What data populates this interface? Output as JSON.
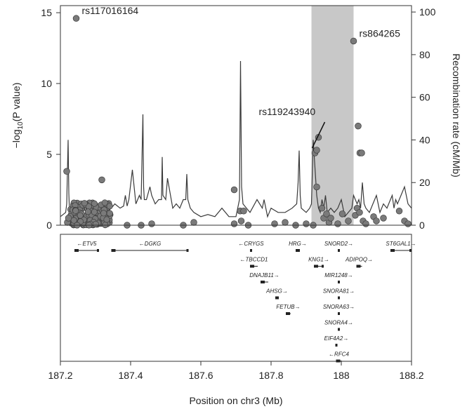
{
  "chart_data": {
    "type": "scatter",
    "title": "",
    "xlabel": "Position on chr3 (Mb)",
    "ylabel_left_prefix": "−log",
    "ylabel_left_sub": "10",
    "ylabel_left_suffix": "(P value)",
    "ylabel_right": "Recombination rate (cM/Mb)",
    "xlim": [
      187.2,
      188.2
    ],
    "ylim_left": [
      0,
      15.5
    ],
    "ylim_right": [
      0,
      103
    ],
    "x_ticks": [
      187.2,
      187.4,
      187.6,
      187.8,
      188.0,
      188.2
    ],
    "x_tick_labels": [
      "187.2",
      "187.4",
      "187.6",
      "187.8",
      "188",
      "188.2"
    ],
    "y_ticks_left": [
      0,
      5,
      10,
      15
    ],
    "y_tick_labels_left": [
      "0",
      "5",
      "10",
      "15"
    ],
    "y_ticks_right": [
      0,
      20,
      40,
      60,
      80,
      100
    ],
    "y_tick_labels_right": [
      "0",
      "20",
      "40",
      "60",
      "80",
      "100"
    ],
    "highlight_region": [
      187.915,
      188.035
    ],
    "annotated_snps": [
      {
        "name": "rs117016164",
        "x": 187.245,
        "y": 14.6
      },
      {
        "name": "rs864265",
        "x": 188.035,
        "y": 13.0
      },
      {
        "name": "rs119243940",
        "x": 187.925,
        "y": 5.1
      }
    ],
    "snps": [
      {
        "x": 187.218,
        "y": 3.8
      },
      {
        "x": 187.245,
        "y": 14.6
      },
      {
        "x": 187.318,
        "y": 3.2
      },
      {
        "x": 187.695,
        "y": 2.5
      },
      {
        "x": 187.712,
        "y": 1.0
      },
      {
        "x": 187.722,
        "y": 1.0
      },
      {
        "x": 187.715,
        "y": 0.3
      },
      {
        "x": 187.735,
        "y": 0.0
      },
      {
        "x": 187.695,
        "y": 0.1
      },
      {
        "x": 187.58,
        "y": 0.2
      },
      {
        "x": 187.55,
        "y": 0.0
      },
      {
        "x": 187.43,
        "y": 0.0
      },
      {
        "x": 187.39,
        "y": 0.0
      },
      {
        "x": 187.46,
        "y": 0.1
      },
      {
        "x": 187.81,
        "y": 0.1
      },
      {
        "x": 187.84,
        "y": 0.2
      },
      {
        "x": 187.87,
        "y": 0.0
      },
      {
        "x": 187.9,
        "y": 0.1
      },
      {
        "x": 187.92,
        "y": 0.0
      },
      {
        "x": 187.925,
        "y": 5.1
      },
      {
        "x": 187.93,
        "y": 5.3
      },
      {
        "x": 187.935,
        "y": 6.2
      },
      {
        "x": 187.93,
        "y": 2.7
      },
      {
        "x": 187.945,
        "y": 1.2
      },
      {
        "x": 187.95,
        "y": 0.5
      },
      {
        "x": 187.958,
        "y": 0.8
      },
      {
        "x": 187.965,
        "y": 0.2
      },
      {
        "x": 187.97,
        "y": 0.5
      },
      {
        "x": 187.99,
        "y": 0.1
      },
      {
        "x": 188.003,
        "y": 0.8
      },
      {
        "x": 188.02,
        "y": 0.3
      },
      {
        "x": 188.035,
        "y": 13.0
      },
      {
        "x": 188.048,
        "y": 7.0
      },
      {
        "x": 188.053,
        "y": 5.1
      },
      {
        "x": 188.058,
        "y": 5.1
      },
      {
        "x": 188.045,
        "y": 1.2
      },
      {
        "x": 188.04,
        "y": 0.7
      },
      {
        "x": 188.052,
        "y": 0.9
      },
      {
        "x": 188.062,
        "y": 0.3
      },
      {
        "x": 188.07,
        "y": 0.1
      },
      {
        "x": 188.092,
        "y": 0.6
      },
      {
        "x": 188.1,
        "y": 0.3
      },
      {
        "x": 188.12,
        "y": 0.5
      },
      {
        "x": 188.165,
        "y": 1.0
      },
      {
        "x": 188.18,
        "y": 0.3
      },
      {
        "x": 188.19,
        "y": 0.1
      },
      {
        "x": 187.22,
        "y": 0.2
      },
      {
        "x": 187.223,
        "y": 0.5
      }
    ],
    "snp_cluster": {
      "x_range": [
        187.228,
        187.345
      ],
      "y_range": [
        0.0,
        1.6
      ],
      "count": 170
    },
    "recombination_rate": {
      "x": [
        187.2,
        187.215,
        187.218,
        187.222,
        187.224,
        187.226,
        187.23,
        187.245,
        187.26,
        187.27,
        187.285,
        187.3,
        187.315,
        187.33,
        187.345,
        187.355,
        187.37,
        187.38,
        187.385,
        187.39,
        187.395,
        187.405,
        187.41,
        187.415,
        187.425,
        187.43,
        187.435,
        187.437,
        187.439,
        187.445,
        187.455,
        187.46,
        187.47,
        187.48,
        187.488,
        187.49,
        187.492,
        187.5,
        187.505,
        187.52,
        187.53,
        187.54,
        187.55,
        187.557,
        187.56,
        187.563,
        187.57,
        187.58,
        187.6,
        187.62,
        187.64,
        187.66,
        187.68,
        187.7,
        187.71,
        187.713,
        187.716,
        187.72,
        187.73,
        187.74,
        187.76,
        187.775,
        187.78,
        187.79,
        187.8,
        187.82,
        187.84,
        187.86,
        187.873,
        187.877,
        187.88,
        187.883,
        187.886,
        187.9,
        187.91,
        187.915,
        187.92,
        187.93,
        187.935,
        187.94,
        187.945,
        187.95,
        187.955,
        187.96,
        187.97,
        187.98,
        187.99,
        188.0,
        188.01,
        188.02,
        188.03,
        188.035,
        188.045,
        188.05,
        188.055,
        188.06,
        188.065,
        188.07,
        188.08,
        188.09,
        188.1,
        188.11,
        188.12,
        188.13,
        188.14,
        188.145,
        188.15,
        188.155,
        188.16,
        188.17,
        188.18,
        188.19,
        188.2
      ],
      "y": [
        4,
        6,
        10,
        40,
        15,
        6,
        4,
        5,
        8,
        7,
        9,
        7,
        8,
        6,
        8,
        10,
        8,
        9,
        14,
        9,
        12,
        26,
        18,
        10,
        14,
        12,
        52,
        18,
        12,
        12,
        18,
        14,
        10,
        12,
        12,
        32,
        14,
        12,
        22,
        8,
        10,
        8,
        12,
        12,
        24,
        12,
        8,
        6,
        4,
        5,
        4,
        8,
        4,
        4,
        12,
        77,
        18,
        10,
        8,
        6,
        12,
        8,
        12,
        4,
        8,
        6,
        6,
        8,
        10,
        20,
        35,
        14,
        8,
        6,
        8,
        10,
        40,
        14,
        8,
        6,
        12,
        8,
        14,
        6,
        8,
        6,
        8,
        12,
        4,
        6,
        8,
        14,
        10,
        12,
        8,
        20,
        10,
        8,
        6,
        10,
        14,
        6,
        10,
        8,
        12,
        14,
        8,
        12,
        10,
        14,
        18,
        10,
        8
      ]
    },
    "genes": [
      {
        "name": "ETV5",
        "start": 187.24,
        "end": 187.31,
        "strand": "-",
        "row": 0
      },
      {
        "name": "DGKG",
        "start": 187.345,
        "end": 187.565,
        "strand": "-",
        "row": 0
      },
      {
        "name": "CRYGS",
        "start": 187.74,
        "end": 187.745,
        "strand": "-",
        "row": 0
      },
      {
        "name": "HRG",
        "start": 187.87,
        "end": 187.882,
        "strand": "+",
        "row": 0
      },
      {
        "name": "SNORD2",
        "start": 187.99,
        "end": 187.992,
        "strand": "+",
        "row": 0
      },
      {
        "name": "ST6GAL1",
        "start": 188.14,
        "end": 188.2,
        "strand": "+",
        "row": 0
      },
      {
        "name": "TBCCD1",
        "start": 187.74,
        "end": 187.762,
        "strand": "-",
        "row": 1
      },
      {
        "name": "KNG1",
        "start": 187.922,
        "end": 187.95,
        "strand": "+",
        "row": 1
      },
      {
        "name": "ADIPOQ",
        "start": 188.043,
        "end": 188.059,
        "strand": "+",
        "row": 1
      },
      {
        "name": "DNAJB11",
        "start": 187.77,
        "end": 187.792,
        "strand": "+",
        "row": 2
      },
      {
        "name": "MIR1248",
        "start": 187.99,
        "end": 187.991,
        "strand": "+",
        "row": 2
      },
      {
        "name": "AHSG",
        "start": 187.812,
        "end": 187.822,
        "strand": "+",
        "row": 3
      },
      {
        "name": "SNORA81",
        "start": 187.99,
        "end": 187.991,
        "strand": "+",
        "row": 3
      },
      {
        "name": "FETUB",
        "start": 187.842,
        "end": 187.856,
        "strand": "+",
        "row": 4
      },
      {
        "name": "SNORA63",
        "start": 187.99,
        "end": 187.991,
        "strand": "+",
        "row": 4
      },
      {
        "name": "SNORA4",
        "start": 187.99,
        "end": 187.991,
        "strand": "+",
        "row": 5
      },
      {
        "name": "EIF4A2",
        "start": 187.983,
        "end": 187.989,
        "strand": "+",
        "row": 6
      },
      {
        "name": "RFC4",
        "start": 187.985,
        "end": 188.001,
        "strand": "-",
        "row": 7
      }
    ],
    "colors": {
      "snp_fill": "#7a7a7a",
      "snp_stroke": "#3c3c3c",
      "recomb_line": "#3a3a3a",
      "highlight": "#c8c8c8",
      "axis": "#333333"
    },
    "legend": "none",
    "grid": false
  }
}
